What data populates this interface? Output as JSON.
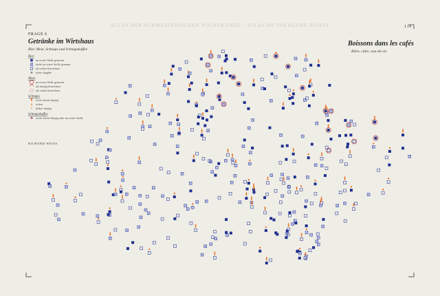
{
  "header": {
    "atlas": "ATLAS DER SCHWEIZERISCHEN VOLKSKUNDE · ATLAS DE FOLKLORE SUISSE",
    "page": "I 14"
  },
  "title_de": {
    "question": "FRAGE 6",
    "title": "Getränke im Wirtshaus",
    "subtitle": "Bier, Most, Schnaps und Schnapskaffee"
  },
  "title_fr": {
    "title": "Boissons dans les cafés",
    "subtitle": "Bière, cidre, eau-de-vie"
  },
  "legend": [
    {
      "heading": "Bier",
      "items": [
        "an erster Stelle genannt",
        "nicht an erster Stelle genannt",
        "als selten bezeichnet",
        "keine Angabe"
      ]
    },
    {
      "heading": "Most",
      "items": [
        "an erster Stelle genannt",
        "als häufig bezeichnet",
        "als selten bezeichnet"
      ]
    },
    {
      "heading": "Schnaps",
      "items": [
        "recht relativ häufig",
        "selten",
        "früher häufig"
      ]
    },
    {
      "heading": "Schnapskaffee",
      "items": [
        "recht relativ häufig oder an erster Stelle"
      ]
    }
  ],
  "author": "RICHARD WEISS"
}
